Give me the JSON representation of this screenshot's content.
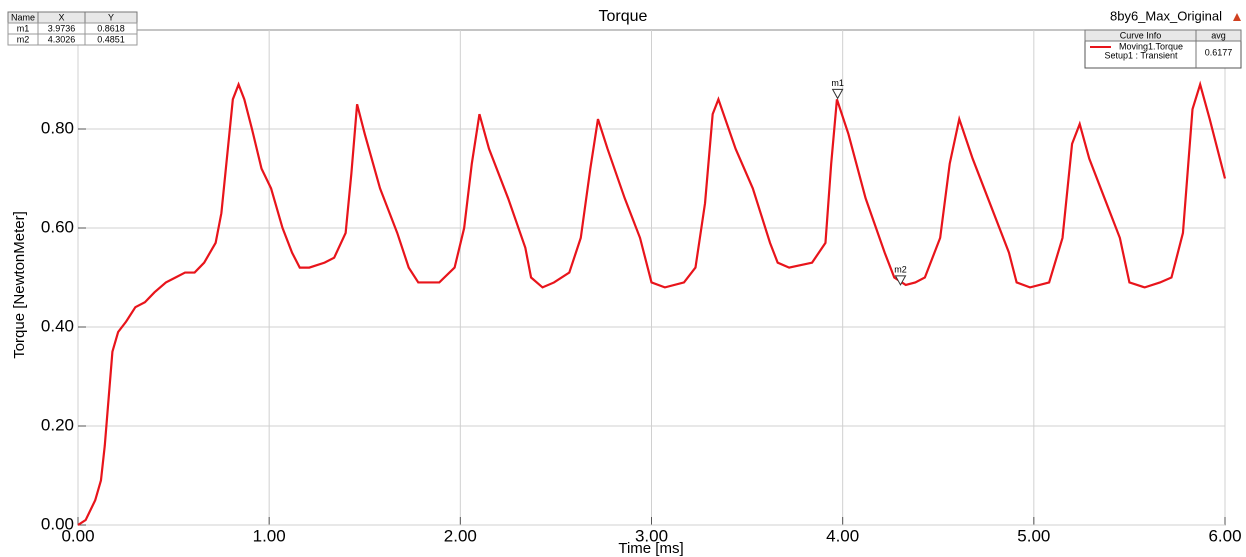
{
  "chart_data": {
    "type": "line",
    "title": "Torque",
    "subtitle": "8by6_Max_Original",
    "x_label": "Time [ms]",
    "y_label": "Torque [NewtonMeter]",
    "x": [
      0,
      0.04,
      0.09,
      0.12,
      0.14,
      0.18,
      0.21,
      0.25,
      0.3,
      0.35,
      0.4,
      0.46,
      0.51,
      0.56,
      0.61,
      0.66,
      0.72,
      0.75,
      0.81,
      0.84,
      0.87,
      0.91,
      0.96,
      1.01,
      1.07,
      1.12,
      1.16,
      1.21,
      1.29,
      1.34,
      1.4,
      1.43,
      1.46,
      1.5,
      1.58,
      1.67,
      1.73,
      1.78,
      1.89,
      1.97,
      2.02,
      2.06,
      2.1,
      2.15,
      2.25,
      2.34,
      2.37,
      2.43,
      2.49,
      2.57,
      2.63,
      2.68,
      2.72,
      2.77,
      2.86,
      2.94,
      3.0,
      3.07,
      3.17,
      3.23,
      3.28,
      3.32,
      3.35,
      3.44,
      3.53,
      3.62,
      3.66,
      3.72,
      3.84,
      3.91,
      3.94,
      3.97,
      4.03,
      4.12,
      4.22,
      4.27,
      4.33,
      4.38,
      4.43,
      4.51,
      4.56,
      4.61,
      4.68,
      4.78,
      4.87,
      4.91,
      4.98,
      5.08,
      5.15,
      5.2,
      5.24,
      5.29,
      5.37,
      5.45,
      5.5,
      5.58,
      5.66,
      5.72,
      5.78,
      5.83,
      5.87,
      5.92,
      6.0
    ],
    "series": [
      {
        "name": "Moving1.Torque",
        "color": "#e8141b",
        "values": [
          0,
          0.01,
          0.05,
          0.09,
          0.16,
          0.35,
          0.39,
          0.41,
          0.44,
          0.45,
          0.47,
          0.49,
          0.5,
          0.51,
          0.51,
          0.53,
          0.57,
          0.63,
          0.86,
          0.89,
          0.86,
          0.8,
          0.72,
          0.68,
          0.6,
          0.55,
          0.52,
          0.52,
          0.53,
          0.54,
          0.59,
          0.71,
          0.85,
          0.79,
          0.68,
          0.59,
          0.52,
          0.49,
          0.49,
          0.52,
          0.6,
          0.73,
          0.83,
          0.76,
          0.66,
          0.56,
          0.5,
          0.48,
          0.49,
          0.51,
          0.58,
          0.72,
          0.82,
          0.76,
          0.66,
          0.58,
          0.49,
          0.48,
          0.49,
          0.52,
          0.65,
          0.83,
          0.86,
          0.76,
          0.68,
          0.57,
          0.53,
          0.52,
          0.53,
          0.57,
          0.73,
          0.86,
          0.79,
          0.66,
          0.55,
          0.5,
          0.485,
          0.49,
          0.5,
          0.58,
          0.73,
          0.82,
          0.74,
          0.64,
          0.55,
          0.49,
          0.48,
          0.49,
          0.58,
          0.77,
          0.81,
          0.74,
          0.66,
          0.58,
          0.49,
          0.48,
          0.49,
          0.5,
          0.59,
          0.84,
          0.89,
          0.82,
          0.7
        ]
      }
    ],
    "xlim": [
      0,
      6
    ],
    "ylim": [
      0,
      1.0
    ],
    "xticks": [
      {
        "value": 0,
        "label": "0.00"
      },
      {
        "value": 1,
        "label": "1.00"
      },
      {
        "value": 2,
        "label": "2.00"
      },
      {
        "value": 3,
        "label": "3.00"
      },
      {
        "value": 4,
        "label": "4.00"
      },
      {
        "value": 5,
        "label": "5.00"
      },
      {
        "value": 6,
        "label": "6.00"
      }
    ],
    "yticks": [
      {
        "value": 0,
        "label": "0.00"
      },
      {
        "value": 0.2,
        "label": "0.20"
      },
      {
        "value": 0.4,
        "label": "0.40"
      },
      {
        "value": 0.6,
        "label": "0.60"
      },
      {
        "value": 0.8,
        "label": "0.80"
      }
    ],
    "grid": true,
    "legend": {
      "headers": [
        "Curve Info",
        "avg"
      ],
      "setup": "Setup1 : Transient",
      "avg": 0.6177
    },
    "markers": {
      "headers": [
        "Name",
        "X",
        "Y"
      ],
      "rows": [
        {
          "name": "m1",
          "x": 3.9736,
          "y": 0.8618
        },
        {
          "name": "m2",
          "x": 4.3026,
          "y": 0.4851
        }
      ]
    }
  }
}
